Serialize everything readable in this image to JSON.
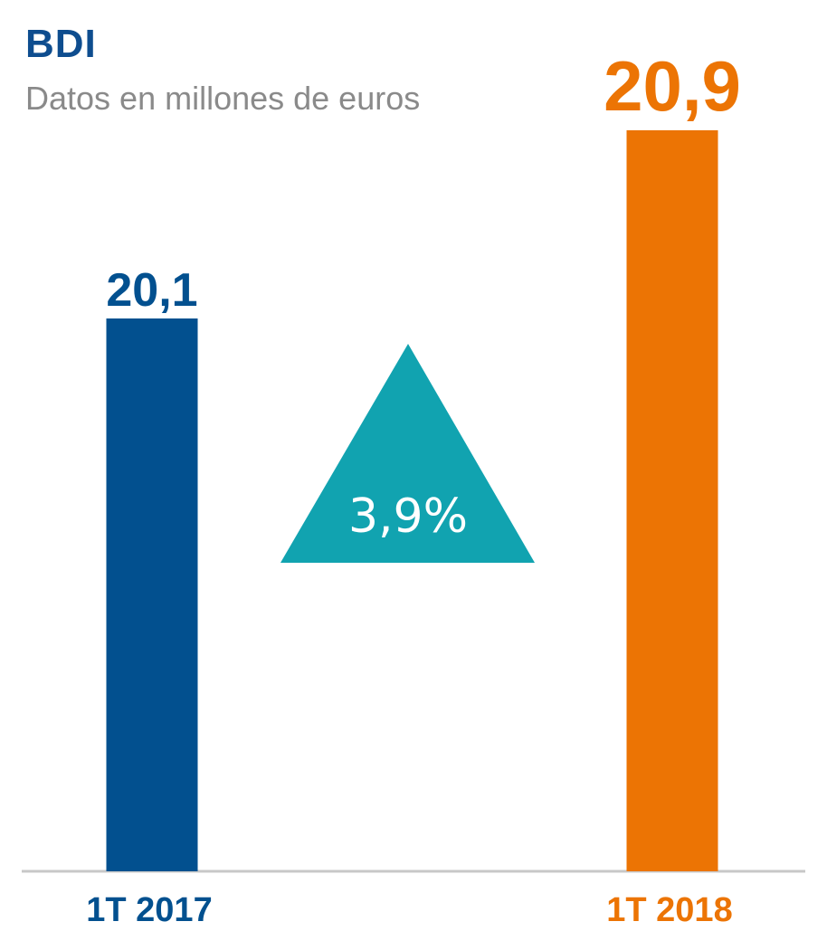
{
  "chart_data": {
    "type": "bar",
    "title": "BDI",
    "subtitle": "Datos en millones de euros",
    "categories": [
      "1T 2017",
      "1T 2018"
    ],
    "values": [
      20.1,
      20.9
    ],
    "value_labels": [
      "20,1",
      "20,9"
    ],
    "bar_colors": [
      "#02508f",
      "#ec7404"
    ],
    "change_label": "3,9%",
    "change_color": "#11a3b0",
    "change_icon": "up-triangle-icon",
    "axis_color": "#c8c8c8"
  }
}
